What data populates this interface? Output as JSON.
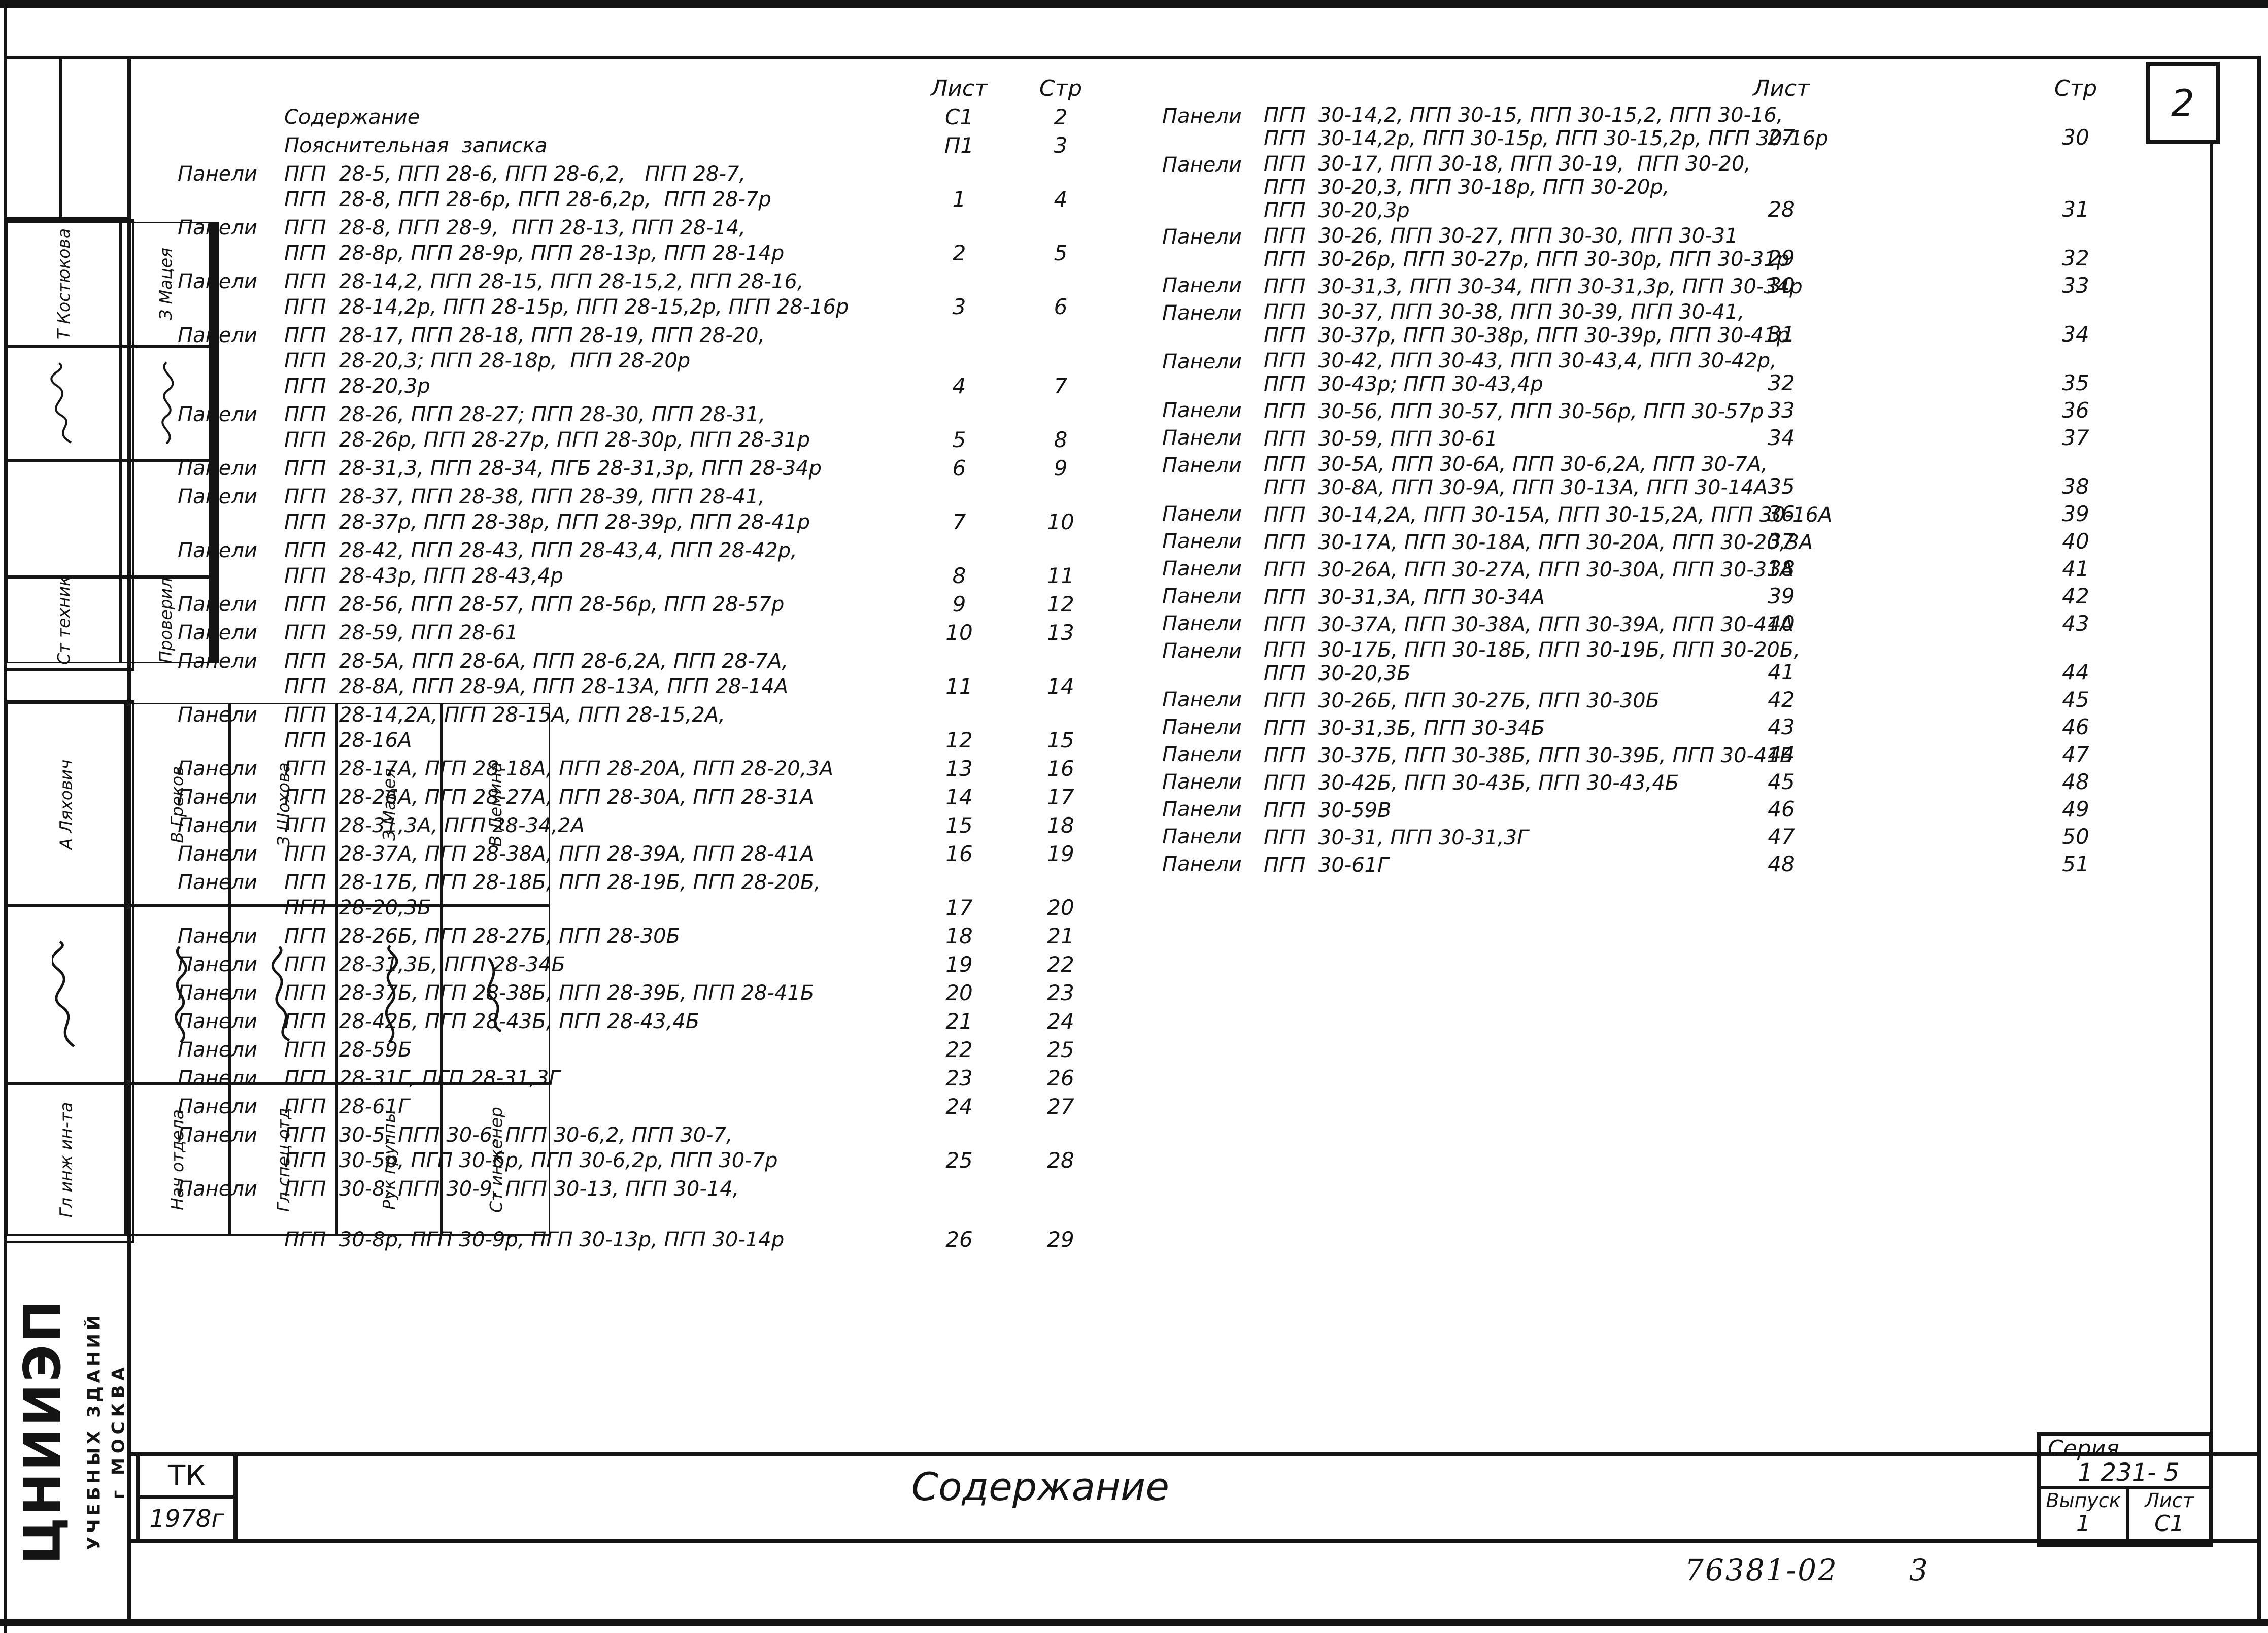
{
  "colors": {
    "ink": "#141414",
    "paper": "#ffffff"
  },
  "page": {
    "badge": "2"
  },
  "title_band": {
    "title": "Содержание"
  },
  "stamp_tk": {
    "line1": "ТК",
    "line2": "1978г"
  },
  "titleblock": {
    "series_label": "Серия",
    "series_value": "1 231- 5",
    "issue_label": "Выпуск",
    "issue_value": "1",
    "sheet_label": "Лист",
    "sheet_value": "С1"
  },
  "footer": {
    "note_code": "76381-02",
    "note_page": "3"
  },
  "sidebar": {
    "org_line1": "ЦНИИЭП",
    "org_line2": "УЧЕБНЫХ ЗДАНИЙ",
    "org_line3": "г МОСКВА",
    "upper": [
      {
        "role": "Ст техник",
        "name": "Т Костюкова"
      },
      {
        "role": "Проверил",
        "name": "З Мацея"
      }
    ],
    "lower": [
      {
        "role": "Гл инж ин-та",
        "name": "А Ляхович"
      },
      {
        "role": "Нач отдела",
        "name": "В Греков"
      },
      {
        "role": "Гл спец отд",
        "name": "З Шохова"
      },
      {
        "role": "Рук группы",
        "name": "З Мацея"
      },
      {
        "role": "Ст инженер",
        "name": "В Демина"
      }
    ]
  },
  "toc": {
    "header_sheet": "Лист",
    "header_page": "Стр",
    "left": [
      {
        "label": "",
        "lines": [
          "Содержание"
        ],
        "sheet": "С1",
        "page": "2"
      },
      {
        "label": "",
        "lines": [
          "Пояснительная  записка"
        ],
        "sheet": "П1",
        "page": "3"
      },
      {
        "label": "Панели",
        "lines": [
          "ПГП  28-5, ПГП 28-6, ПГП 28-6,2,   ПГП 28-7,",
          "ПГП  28-8, ПГП 28-6р, ПГП 28-6,2р,  ПГП 28-7р"
        ],
        "sheet": "1",
        "page": "4"
      },
      {
        "label": "Панели",
        "lines": [
          "ПГП  28-8, ПГП 28-9,  ПГП 28-13, ПГП 28-14,",
          "ПГП  28-8р, ПГП 28-9р, ПГП 28-13р, ПГП 28-14р"
        ],
        "sheet": "2",
        "page": "5"
      },
      {
        "label": "Панели",
        "lines": [
          "ПГП  28-14,2, ПГП 28-15, ПГП 28-15,2, ПГП 28-16,",
          "ПГП  28-14,2р, ПГП 28-15р, ПГП 28-15,2р, ПГП 28-16р"
        ],
        "sheet": "3",
        "page": "6"
      },
      {
        "label": "Панели",
        "lines": [
          "ПГП  28-17, ПГП 28-18, ПГП 28-19, ПГП 28-20,",
          "ПГП  28-20,3; ПГП 28-18р,  ПГП 28-20р",
          "ПГП  28-20,3р"
        ],
        "sheet": "4",
        "page": "7"
      },
      {
        "label": "Панели",
        "lines": [
          "ПГП  28-26, ПГП 28-27; ПГП 28-30, ПГП 28-31,",
          "ПГП  28-26р, ПГП 28-27р, ПГП 28-30р, ПГП 28-31р"
        ],
        "sheet": "5",
        "page": "8"
      },
      {
        "label": "Панели",
        "lines": [
          "ПГП  28-31,3, ПГП 28-34, ПГБ 28-31,3р, ПГП 28-34р"
        ],
        "sheet": "6",
        "page": "9"
      },
      {
        "label": "Панели",
        "lines": [
          "ПГП  28-37, ПГП 28-38, ПГП 28-39, ПГП 28-41,",
          "ПГП  28-37р, ПГП 28-38р, ПГП 28-39р, ПГП 28-41р"
        ],
        "sheet": "7",
        "page": "10"
      },
      {
        "label": "Панели",
        "lines": [
          "ПГП  28-42, ПГП 28-43, ПГП 28-43,4, ПГП 28-42р,",
          "ПГП  28-43р, ПГП 28-43,4р"
        ],
        "sheet": "8",
        "page": "11"
      },
      {
        "label": "Панели",
        "lines": [
          "ПГП  28-56, ПГП 28-57, ПГП 28-56р, ПГП 28-57р"
        ],
        "sheet": "9",
        "page": "12"
      },
      {
        "label": "Панели",
        "lines": [
          "ПГП  28-59, ПГП 28-61"
        ],
        "sheet": "10",
        "page": "13"
      },
      {
        "label": "Панели",
        "lines": [
          "ПГП  28-5А, ПГП 28-6А, ПГП 28-6,2А, ПГП 28-7А,",
          "ПГП  28-8А, ПГП 28-9А, ПГП 28-13А, ПГП 28-14А"
        ],
        "sheet": "11",
        "page": "14"
      },
      {
        "label": "Панели",
        "lines": [
          "ПГП  28-14,2А, ПГП 28-15А, ПГП 28-15,2А,",
          "ПГП  28-16А"
        ],
        "sheet": "12",
        "page": "15"
      },
      {
        "label": "Панели",
        "lines": [
          "ПГП  28-17А, ПГП 28-18А, ПГП 28-20А, ПГП 28-20,3А"
        ],
        "sheet": "13",
        "page": "16"
      },
      {
        "label": "Панели",
        "lines": [
          "ПГП  28-26А, ПГП 28-27А, ПГП 28-30А, ПГП 28-31А"
        ],
        "sheet": "14",
        "page": "17"
      },
      {
        "label": "Панели",
        "lines": [
          "ПГП  28-31,3А, ПГП 28-34,2А"
        ],
        "sheet": "15",
        "page": "18"
      },
      {
        "label": "Панели",
        "lines": [
          "ПГП  28-37А, ПГП 28-38А, ПГП 28-39А, ПГП 28-41А"
        ],
        "sheet": "16",
        "page": "19"
      },
      {
        "label": "Панели",
        "lines": [
          "ПГП  28-17Б, ПГП 28-18Б, ПГП 28-19Б, ПГП 28-20Б,",
          "ПГП  28-20,3Б"
        ],
        "sheet": "17",
        "page": "20"
      },
      {
        "label": "Панели",
        "lines": [
          "ПГП  28-26Б, ПГП 28-27Б, ПГП 28-30Б"
        ],
        "sheet": "18",
        "page": "21"
      },
      {
        "label": "Панели",
        "lines": [
          "ПГП  28-31,3Б, ПГП 28-34Б"
        ],
        "sheet": "19",
        "page": "22"
      },
      {
        "label": "Панели",
        "lines": [
          "ПГП  28-37Б, ПГП 28-38Б, ПГП 28-39Б, ПГП 28-41Б"
        ],
        "sheet": "20",
        "page": "23"
      },
      {
        "label": "Панели",
        "lines": [
          "ПГП  28-42Б, ПГП 28-43Б, ПГП 28-43,4Б"
        ],
        "sheet": "21",
        "page": "24"
      },
      {
        "label": "Панели",
        "lines": [
          "ПГП  28-59Б"
        ],
        "sheet": "22",
        "page": "25"
      },
      {
        "label": "Панели",
        "lines": [
          "ПГП  28-31Г, ПГП 28-31,3Г"
        ],
        "sheet": "23",
        "page": "26"
      },
      {
        "label": "Панели",
        "lines": [
          "ПГП  28-61Г"
        ],
        "sheet": "24",
        "page": "27"
      },
      {
        "label": "Панели",
        "lines": [
          "ПГП  30-5, ПГП 30-6, ПГП 30-6,2, ПГП 30-7,",
          "ПГП  30-5р, ПГП 30-6р, ПГП 30-6,2р, ПГП 30-7р"
        ],
        "sheet": "25",
        "page": "28"
      },
      {
        "label": "Панели",
        "lines": [
          "ПГП  30-8, ПГП 30-9, ПГП 30-13, ПГП 30-14,",
          "",
          "ПГП  30-8р, ПГП 30-9р, ПГП 30-13р, ПГП 30-14р"
        ],
        "sheet": "26",
        "page": "29"
      }
    ],
    "right": [
      {
        "label": "Панели",
        "lines": [
          "ПГП  30-14,2, ПГП 30-15, ПГП 30-15,2, ПГП 30-16,",
          "ПГП  30-14,2р, ПГП 30-15р, ПГП 30-15,2р, ПГП 30-16р"
        ],
        "sheet": "27",
        "page": "30"
      },
      {
        "label": "Панели",
        "lines": [
          "ПГП  30-17, ПГП 30-18, ПГП 30-19,  ПГП 30-20,",
          "ПГП  30-20,3, ПГП 30-18р, ПГП 30-20р,",
          "ПГП  30-20,3р"
        ],
        "sheet": "28",
        "page": "31"
      },
      {
        "label": "Панели",
        "lines": [
          "ПГП  30-26, ПГП 30-27, ПГП 30-30, ПГП 30-31",
          "ПГП  30-26р, ПГП 30-27р, ПГП 30-30р, ПГП 30-31р"
        ],
        "sheet": "29",
        "page": "32"
      },
      {
        "label": "Панели",
        "lines": [
          "ПГП  30-31,3, ПГП 30-34, ПГП 30-31,3р, ПГП 30-34р"
        ],
        "sheet": "30",
        "page": "33"
      },
      {
        "label": "Панели",
        "lines": [
          "ПГП  30-37, ПГП 30-38, ПГП 30-39, ПГП 30-41,",
          "ПГП  30-37р, ПГП 30-38р, ПГП 30-39р, ПГП 30-41р"
        ],
        "sheet": "31",
        "page": "34"
      },
      {
        "label": "Панели",
        "lines": [
          "ПГП  30-42, ПГП 30-43, ПГП 30-43,4, ПГП 30-42р,",
          "ПГП  30-43р; ПГП 30-43,4р"
        ],
        "sheet": "32",
        "page": "35"
      },
      {
        "label": "Панели",
        "lines": [
          "ПГП  30-56, ПГП 30-57, ПГП 30-56р, ПГП 30-57р"
        ],
        "sheet": "33",
        "page": "36"
      },
      {
        "label": "Панели",
        "lines": [
          "ПГП  30-59, ПГП 30-61"
        ],
        "sheet": "34",
        "page": "37"
      },
      {
        "label": "Панели",
        "lines": [
          "ПГП  30-5А, ПГП 30-6А, ПГП 30-6,2А, ПГП 30-7А,",
          "ПГП  30-8А, ПГП 30-9А, ПГП 30-13А, ПГП 30-14А"
        ],
        "sheet": "35",
        "page": "38"
      },
      {
        "label": "Панели",
        "lines": [
          "ПГП  30-14,2А, ПГП 30-15А, ПГП 30-15,2А, ПГП 30-16А"
        ],
        "sheet": "36",
        "page": "39"
      },
      {
        "label": "Панели",
        "lines": [
          "ПГП  30-17А, ПГП 30-18А, ПГП 30-20А, ПГП 30-20,3А"
        ],
        "sheet": "37",
        "page": "40"
      },
      {
        "label": "Панели",
        "lines": [
          "ПГП  30-26А, ПГП 30-27А, ПГП 30-30А, ПГП 30-31А"
        ],
        "sheet": "38",
        "page": "41"
      },
      {
        "label": "Панели",
        "lines": [
          "ПГП  30-31,3А, ПГП 30-34А"
        ],
        "sheet": "39",
        "page": "42"
      },
      {
        "label": "Панели",
        "lines": [
          "ПГП  30-37А, ПГП 30-38А, ПГП 30-39А, ПГП 30-41А"
        ],
        "sheet": "40",
        "page": "43"
      },
      {
        "label": "Панели",
        "lines": [
          "ПГП  30-17Б, ПГП 30-18Б, ПГП 30-19Б, ПГП 30-20Б,",
          "ПГП  30-20,3Б"
        ],
        "sheet": "41",
        "page": "44"
      },
      {
        "label": "Панели",
        "lines": [
          "ПГП  30-26Б, ПГП 30-27Б, ПГП 30-30Б"
        ],
        "sheet": "42",
        "page": "45"
      },
      {
        "label": "Панели",
        "lines": [
          "ПГП  30-31,3Б, ПГП 30-34Б"
        ],
        "sheet": "43",
        "page": "46"
      },
      {
        "label": "Панели",
        "lines": [
          "ПГП  30-37Б, ПГП 30-38Б, ПГП 30-39Б, ПГП 30-41Б"
        ],
        "sheet": "44",
        "page": "47"
      },
      {
        "label": "Панели",
        "lines": [
          "ПГП  30-42Б, ПГП 30-43Б, ПГП 30-43,4Б"
        ],
        "sheet": "45",
        "page": "48"
      },
      {
        "label": "Панели",
        "lines": [
          "ПГП  30-59В"
        ],
        "sheet": "46",
        "page": "49"
      },
      {
        "label": "Панели",
        "lines": [
          "ПГП  30-31, ПГП 30-31,3Г"
        ],
        "sheet": "47",
        "page": "50"
      },
      {
        "label": "Панели",
        "lines": [
          "ПГП  30-61Г"
        ],
        "sheet": "48",
        "page": "51"
      }
    ]
  }
}
